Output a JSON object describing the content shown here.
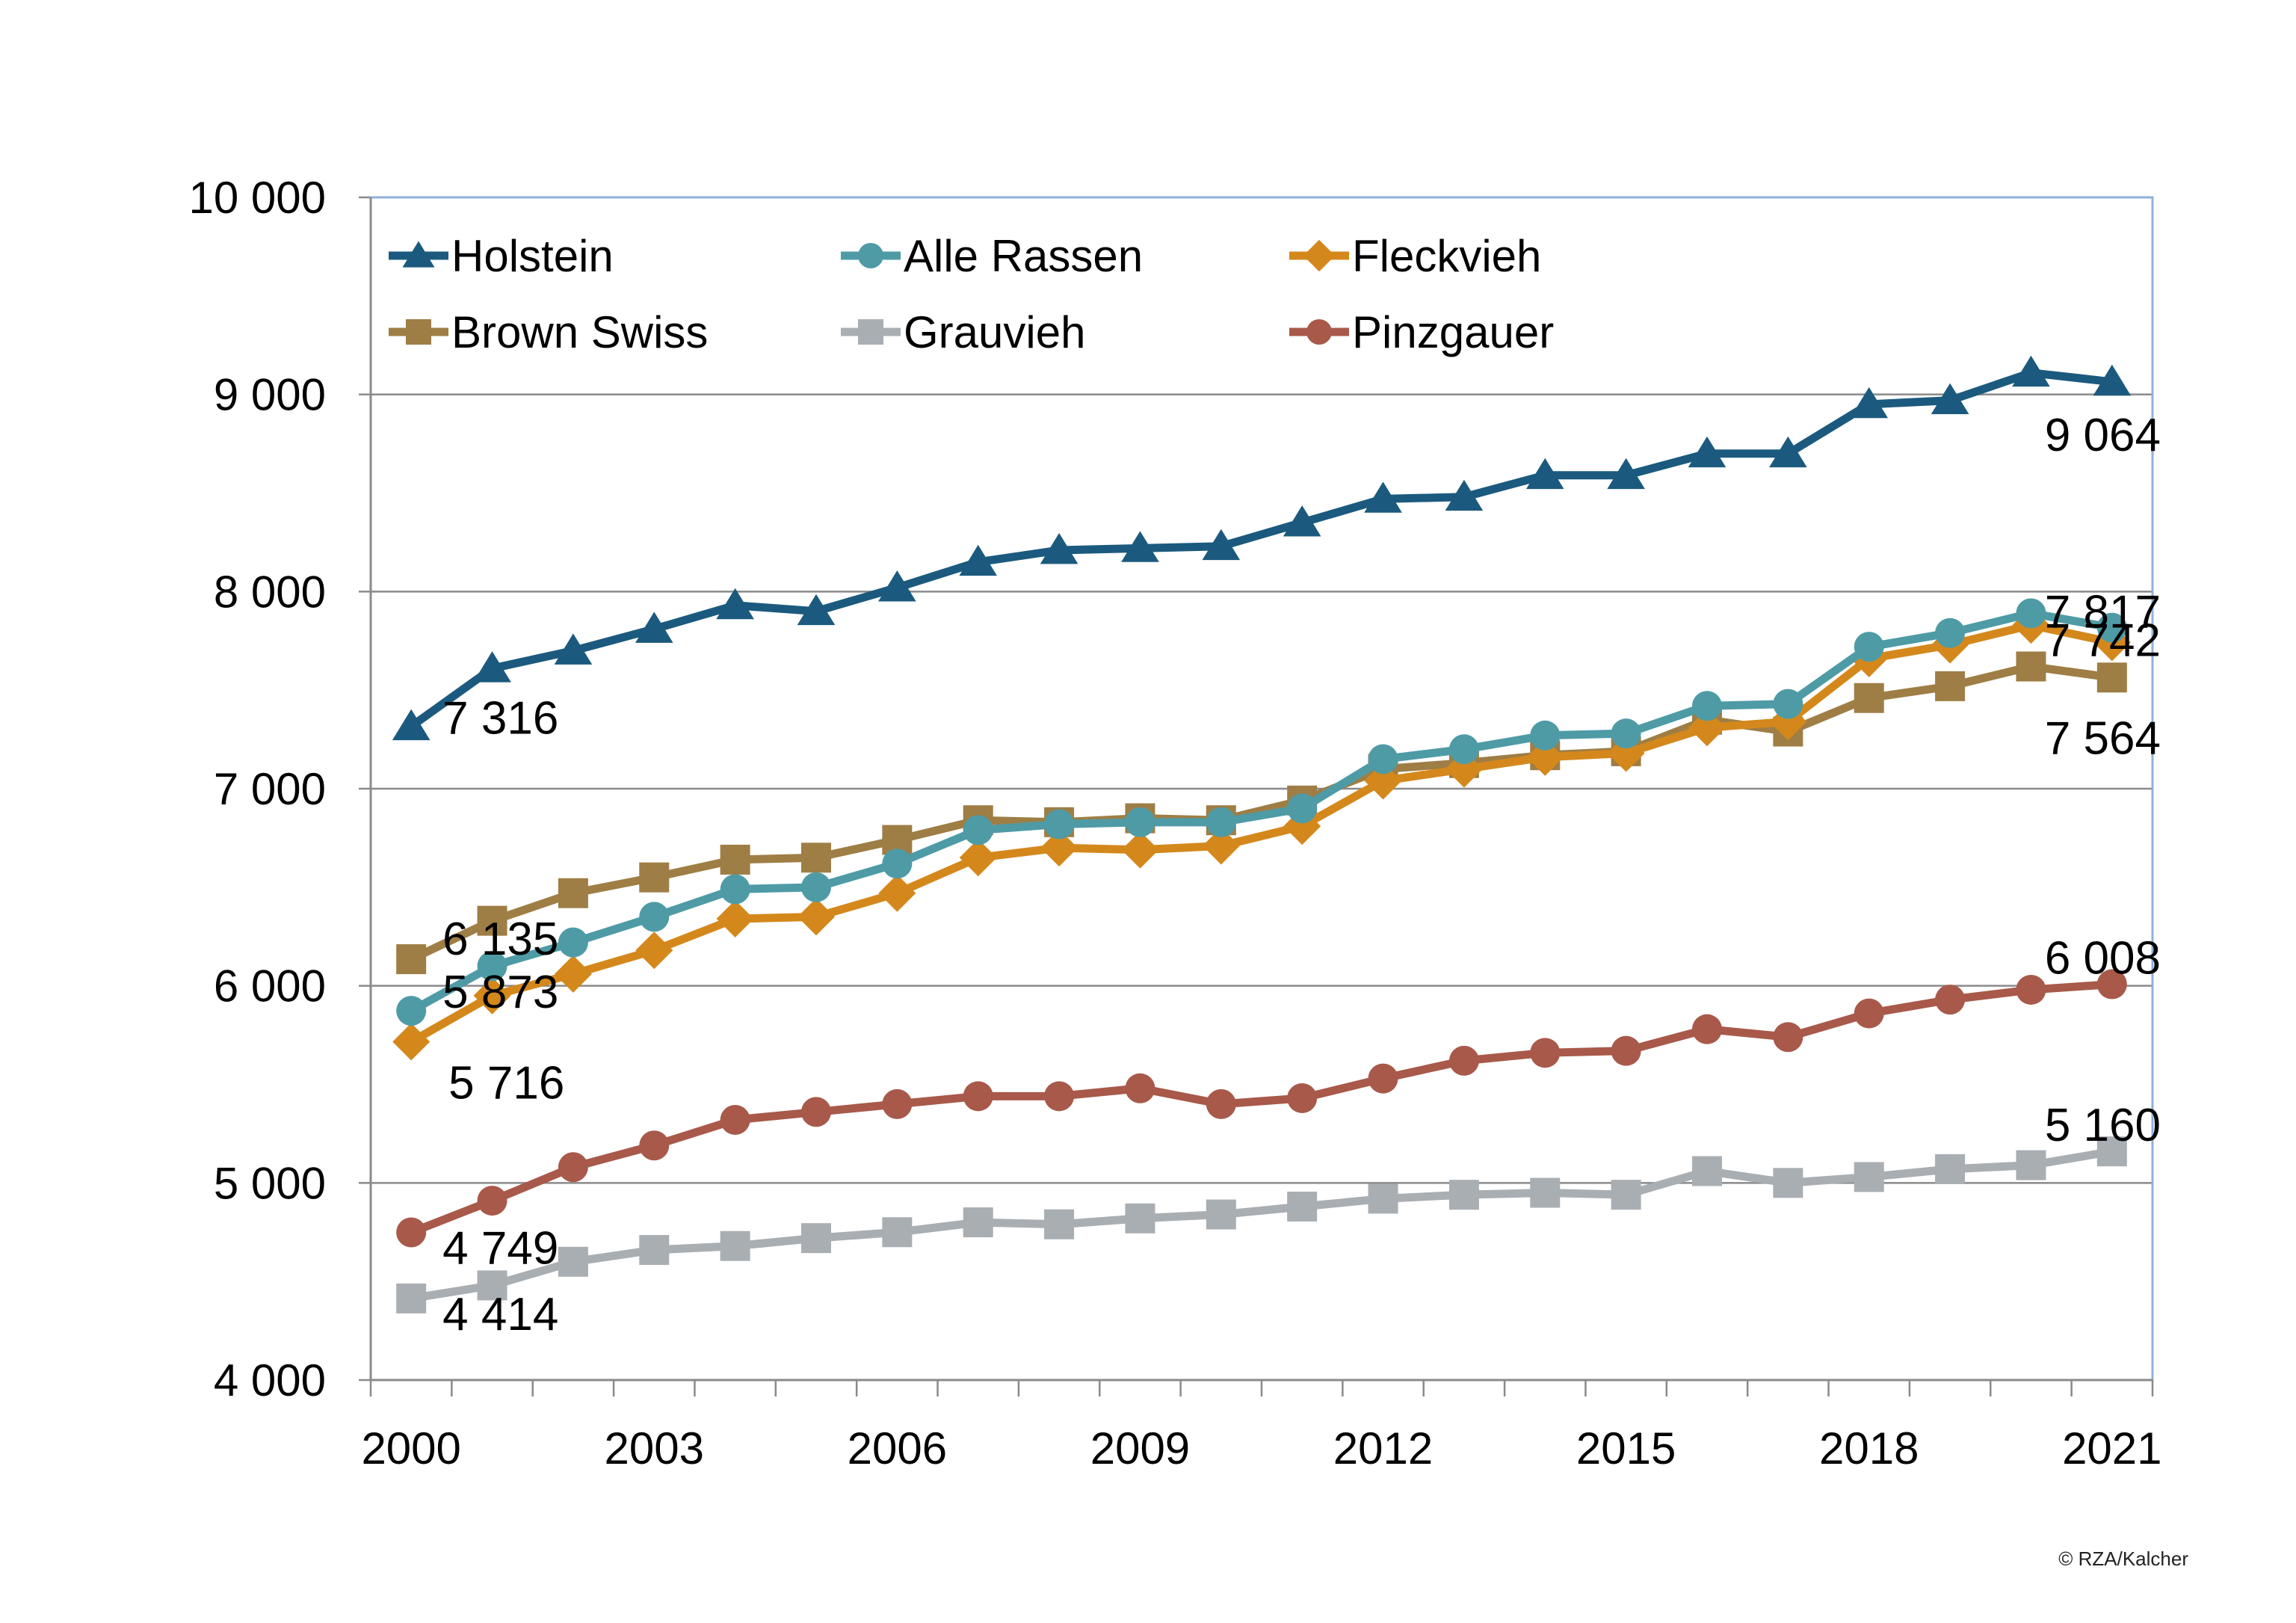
{
  "chart_data": {
    "type": "line",
    "title": "",
    "xlabel": "",
    "ylabel": "",
    "x": [
      2000,
      2001,
      2002,
      2003,
      2004,
      2005,
      2006,
      2007,
      2008,
      2009,
      2010,
      2011,
      2012,
      2013,
      2014,
      2015,
      2016,
      2017,
      2018,
      2019,
      2020,
      2021
    ],
    "x_ticks": [
      "2000",
      "2003",
      "2006",
      "2009",
      "2012",
      "2015",
      "2018",
      "2021"
    ],
    "y_ticks": [
      "4 000",
      "5 000",
      "6 000",
      "7 000",
      "8 000",
      "9 000",
      "10 000"
    ],
    "ylim": [
      4000,
      10000
    ],
    "grid": "horizontal",
    "legend_position": "top-left",
    "series": [
      {
        "name": "Holstein",
        "marker": "triangle",
        "color": "#1B5A7E",
        "values": [
          7316,
          7610,
          7700,
          7810,
          7930,
          7900,
          8020,
          8150,
          8210,
          8220,
          8230,
          8350,
          8470,
          8480,
          8590,
          8590,
          8700,
          8700,
          8950,
          8970,
          9110,
          9064
        ]
      },
      {
        "name": "Alle Rassen",
        "marker": "circle",
        "color": "#4E9BA6",
        "values": [
          5873,
          6100,
          6220,
          6350,
          6490,
          6500,
          6620,
          6790,
          6820,
          6830,
          6830,
          6900,
          7150,
          7200,
          7270,
          7280,
          7420,
          7430,
          7720,
          7790,
          7890,
          7817
        ]
      },
      {
        "name": "Fleckvieh",
        "marker": "diamond",
        "color": "#D4881C",
        "values": [
          5716,
          5950,
          6060,
          6180,
          6340,
          6350,
          6470,
          6650,
          6700,
          6690,
          6710,
          6810,
          7040,
          7100,
          7160,
          7180,
          7310,
          7340,
          7660,
          7730,
          7830,
          7742
        ]
      },
      {
        "name": "Brown Swiss",
        "marker": "square",
        "color": "#9E7E45",
        "values": [
          6135,
          6330,
          6470,
          6550,
          6640,
          6650,
          6740,
          6840,
          6830,
          6850,
          6840,
          6940,
          7100,
          7130,
          7170,
          7190,
          7350,
          7290,
          7460,
          7520,
          7620,
          7564
        ]
      },
      {
        "name": "Grauvieh",
        "marker": "square",
        "color": "#A9AEB3",
        "values": [
          4414,
          4480,
          4600,
          4660,
          4680,
          4720,
          4750,
          4800,
          4790,
          4820,
          4840,
          4880,
          4920,
          4940,
          4950,
          4940,
          5060,
          5000,
          5030,
          5070,
          5090,
          5160
        ]
      },
      {
        "name": "Pinzgauer",
        "marker": "circle",
        "color": "#A8594A",
        "values": [
          4749,
          4910,
          5080,
          5190,
          5320,
          5360,
          5400,
          5440,
          5440,
          5480,
          5400,
          5430,
          5530,
          5620,
          5660,
          5670,
          5780,
          5740,
          5860,
          5930,
          5980,
          6008
        ]
      }
    ],
    "data_labels": [
      {
        "series": "Holstein",
        "year": 2000,
        "text": "7 316"
      },
      {
        "series": "Holstein",
        "year": 2021,
        "text": "9 064"
      },
      {
        "series": "Alle Rassen",
        "year": 2000,
        "text": "5 873"
      },
      {
        "series": "Alle Rassen",
        "year": 2021,
        "text": "7 817"
      },
      {
        "series": "Fleckvieh",
        "year": 2000,
        "text": "5 716"
      },
      {
        "series": "Fleckvieh",
        "year": 2021,
        "text": "7 742"
      },
      {
        "series": "Brown Swiss",
        "year": 2000,
        "text": "6 135"
      },
      {
        "series": "Brown Swiss",
        "year": 2021,
        "text": "7 564"
      },
      {
        "series": "Grauvieh",
        "year": 2000,
        "text": "4 414"
      },
      {
        "series": "Grauvieh",
        "year": 2021,
        "text": "5 160"
      },
      {
        "series": "Pinzgauer",
        "year": 2000,
        "text": "4 749"
      },
      {
        "series": "Pinzgauer",
        "year": 2021,
        "text": "6 008"
      }
    ]
  },
  "credit": "© RZA/Kalcher"
}
